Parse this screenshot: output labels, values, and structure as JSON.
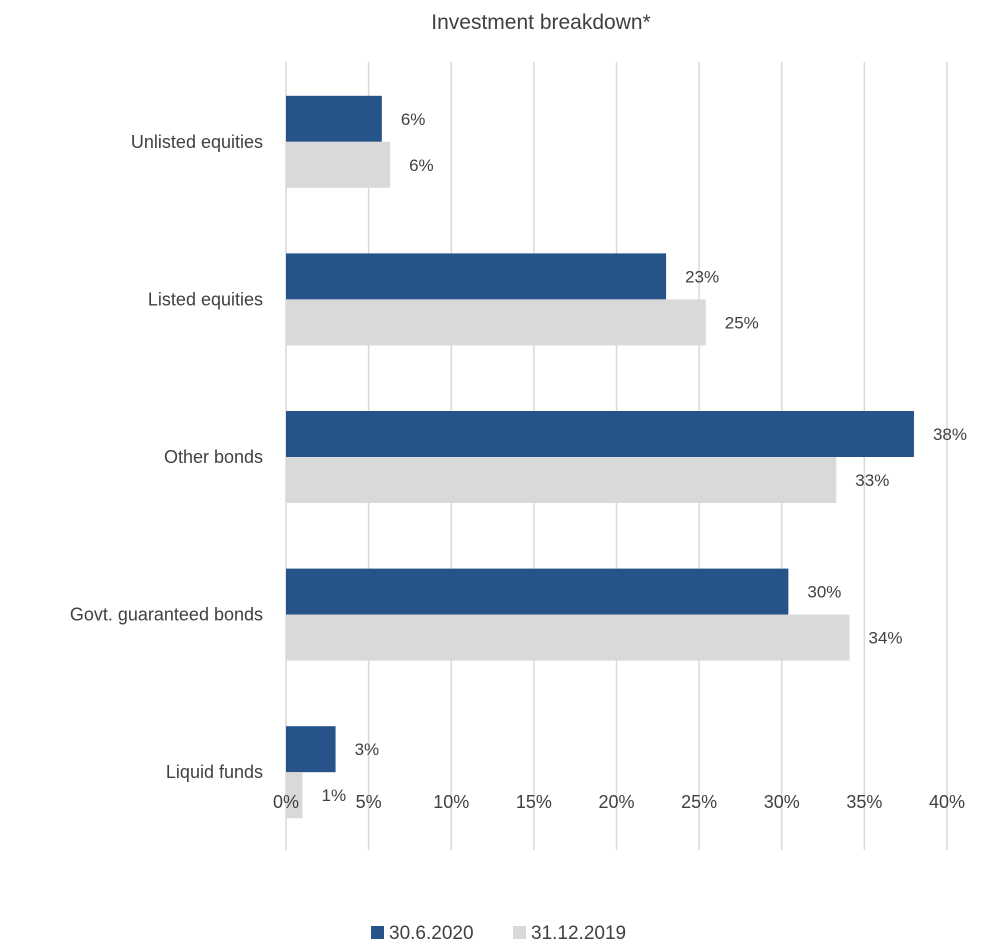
{
  "chart_data": {
    "type": "bar",
    "orientation": "horizontal",
    "title": "Investment breakdown*",
    "categories": [
      "Unlisted equities",
      "Listed equities",
      "Other bonds",
      "Govt. guaranteed bonds",
      "Liquid funds"
    ],
    "series": [
      {
        "name": "30.6.2020",
        "color": "#26538A",
        "values": [
          5.8,
          23.0,
          38.0,
          30.4,
          3.0
        ],
        "labels": [
          "6%",
          "23%",
          "38%",
          "30%",
          "3%"
        ]
      },
      {
        "name": "31.12.2019",
        "color": "#D9D9D9",
        "values": [
          6.3,
          25.4,
          33.3,
          34.1,
          1.0
        ],
        "labels": [
          "6%",
          "25%",
          "33%",
          "34%",
          "1%"
        ]
      }
    ],
    "x_ticks": [
      0,
      5,
      10,
      15,
      20,
      25,
      30,
      35,
      40
    ],
    "x_tick_labels": [
      "0%",
      "5%",
      "10%",
      "15%",
      "20%",
      "25%",
      "30%",
      "35%",
      "40%"
    ],
    "xlim": [
      0,
      40
    ],
    "grid": true,
    "legend_position": "bottom"
  }
}
